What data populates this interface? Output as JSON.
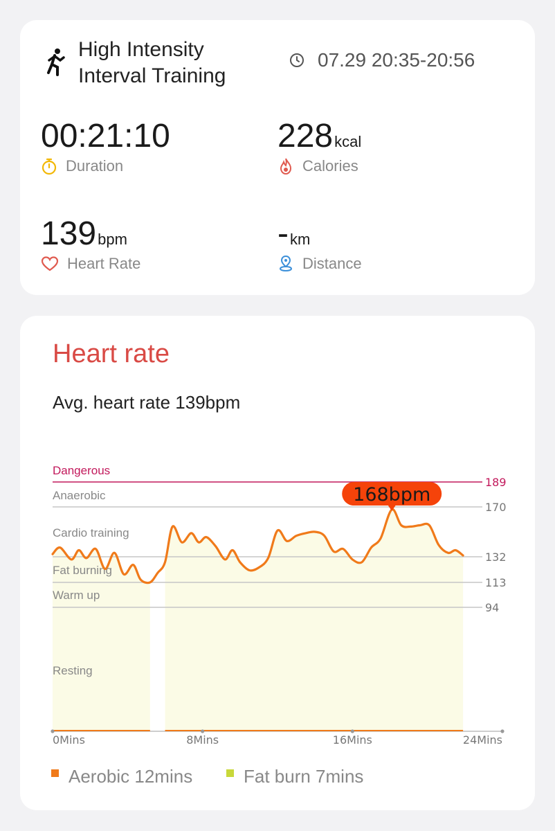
{
  "summary": {
    "title_line1": "High Intensity",
    "title_line2": "Interval Training",
    "time_range": "07.29 20:35-20:56",
    "duration": {
      "value": "00:21:10",
      "label": "Duration"
    },
    "calories": {
      "value": "228",
      "unit": "kcal",
      "label": "Calories"
    },
    "heart_rate": {
      "value": "139",
      "unit": "bpm",
      "label": "Heart Rate"
    },
    "distance": {
      "value": "-",
      "unit": "km",
      "label": "Distance"
    }
  },
  "heart_rate_card": {
    "title": "Heart rate",
    "avg_text": "Avg. heart rate 139bpm",
    "legend": [
      {
        "label": "Aerobic 12mins",
        "color": "#f07a1a"
      },
      {
        "label": "Fat burn 7mins",
        "color": "#c8d83a"
      }
    ]
  },
  "colors": {
    "accent_red": "#d94a45",
    "line_orange": "#f07a1a",
    "dangerous": "#c2185b",
    "fill": "#fbfbe6",
    "icon_yellow": "#f2b705",
    "icon_blue": "#3b8fd9"
  },
  "chart_data": {
    "type": "line",
    "title": "",
    "xlabel": "",
    "ylabel": "",
    "x_ticks": [
      "0Mins",
      "8Mins",
      "16Mins",
      "24Mins"
    ],
    "xlim": [
      0,
      24
    ],
    "ylim": [
      0,
      189
    ],
    "zones": [
      {
        "name": "Dangerous",
        "threshold": 189
      },
      {
        "name": "Anaerobic",
        "threshold": 170
      },
      {
        "name": "Cardio training",
        "threshold": 132
      },
      {
        "name": "Fat burning",
        "threshold": 113
      },
      {
        "name": "Warm up",
        "threshold": 94
      },
      {
        "name": "Resting",
        "threshold": 0
      }
    ],
    "y_tick_labels": [
      "189",
      "170",
      "132",
      "113",
      "94"
    ],
    "peak_label": "168bpm",
    "peak": {
      "x": 18.1,
      "y": 168
    },
    "gap": {
      "from": 5.2,
      "to": 6.0
    },
    "series": [
      {
        "x": [
          0.0,
          0.4,
          1.0,
          1.4,
          1.8,
          2.3,
          2.8,
          3.3,
          3.8,
          4.3,
          4.7,
          5.2,
          5.6,
          6.0,
          6.4,
          6.9,
          7.4,
          7.8,
          8.2,
          8.7,
          9.2,
          9.6,
          10.0,
          10.5,
          11.0,
          11.5,
          12.0,
          12.5,
          13.0,
          13.5,
          14.0,
          14.5,
          15.0,
          15.5,
          16.0,
          16.5,
          17.0,
          17.5,
          18.1,
          18.6,
          19.1,
          19.6,
          20.1,
          20.6,
          21.1,
          21.5,
          21.9
        ],
        "y": [
          134,
          139,
          130,
          137,
          131,
          138,
          123,
          135,
          119,
          126,
          115,
          113,
          120,
          128,
          155,
          143,
          150,
          143,
          147,
          140,
          130,
          137,
          128,
          122,
          124,
          131,
          152,
          144,
          148,
          150,
          151,
          148,
          136,
          138,
          130,
          128,
          139,
          146,
          168,
          156,
          155,
          156,
          156,
          141,
          135,
          137,
          133
        ]
      }
    ]
  }
}
